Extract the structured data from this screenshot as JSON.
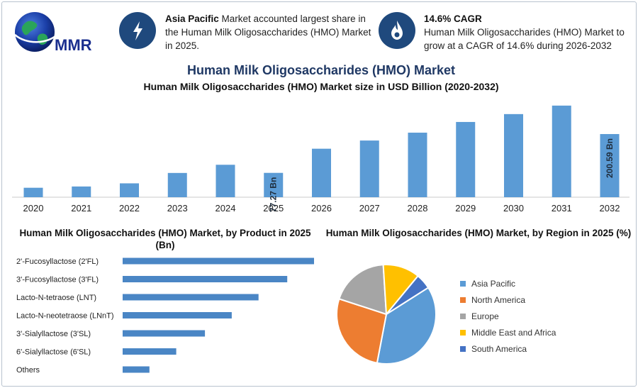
{
  "header": {
    "logo_text": "MMR",
    "info1": {
      "icon": "lightning-icon",
      "bold": "Asia Pacific",
      "text": " Market accounted largest share in the Human Milk Oligosaccharides (HMO) Market in 2025."
    },
    "info2": {
      "icon": "flame-drop-icon",
      "bold": "14.6% CAGR",
      "text": "Human Milk Oligosaccharides (HMO) Market to grow at a CAGR of 14.6% during 2026-2032"
    }
  },
  "titles": {
    "main": "Human Milk Oligosaccharides (HMO) Market",
    "subtitle": "Human Milk Oligosaccharides (HMO) Market size in USD Billion (2020-2032)"
  },
  "colors": {
    "bar": "#5b9bd5",
    "product_bar": "#4a86c5",
    "header_circle": "#1f497d",
    "title": "#1f3864"
  },
  "chart_data": [
    {
      "type": "bar",
      "title": "Human Milk Oligosaccharides (HMO) Market size in USD Billion (2020-2032)",
      "categories": [
        "2020",
        "2021",
        "2022",
        "2023",
        "2024",
        "2025",
        "2026",
        "2027",
        "2028",
        "2029",
        "2030",
        "2031",
        "2032"
      ],
      "values": [
        30,
        34,
        44,
        77,
        103,
        77.27,
        154,
        180,
        205,
        239,
        264,
        291,
        200.59
      ],
      "value_labels": [
        {
          "index": 5,
          "text": "77.27 Bn"
        },
        {
          "index": 12,
          "text": "200.59 Bn"
        }
      ],
      "ylim": [
        0,
        320
      ],
      "grid": false,
      "legend": "none"
    },
    {
      "type": "bar",
      "orientation": "horizontal",
      "title": "Human Milk Oligosaccharides (HMO) Market, by Product in 2025 (Bn)",
      "categories": [
        "2'-Fucosyllactose (2'FL)",
        "3'-Fucosyllactose (3'FL)",
        "Lacto-N-tetraose (LNT)",
        "Lacto-N-neotetraose (LNnT)",
        "3'-Sialyllactose (3'SL)",
        "6'-Sialyllactose (6'SL)",
        "Others"
      ],
      "values": [
        100,
        86,
        71,
        57,
        43,
        28,
        14
      ],
      "xlim": [
        0,
        100
      ],
      "grid": false
    },
    {
      "type": "pie",
      "title": "Human Milk Oligosaccharides (HMO) Market, by Region in 2025 (%)",
      "labels": [
        "Asia Pacific",
        "North America",
        "Europe",
        "Middle East and Africa",
        "South America"
      ],
      "values": [
        37,
        27,
        19,
        12,
        5
      ],
      "colors": [
        "#5b9bd5",
        "#ed7d31",
        "#a5a5a5",
        "#ffc000",
        "#4472c4"
      ],
      "legend": "right"
    }
  ]
}
